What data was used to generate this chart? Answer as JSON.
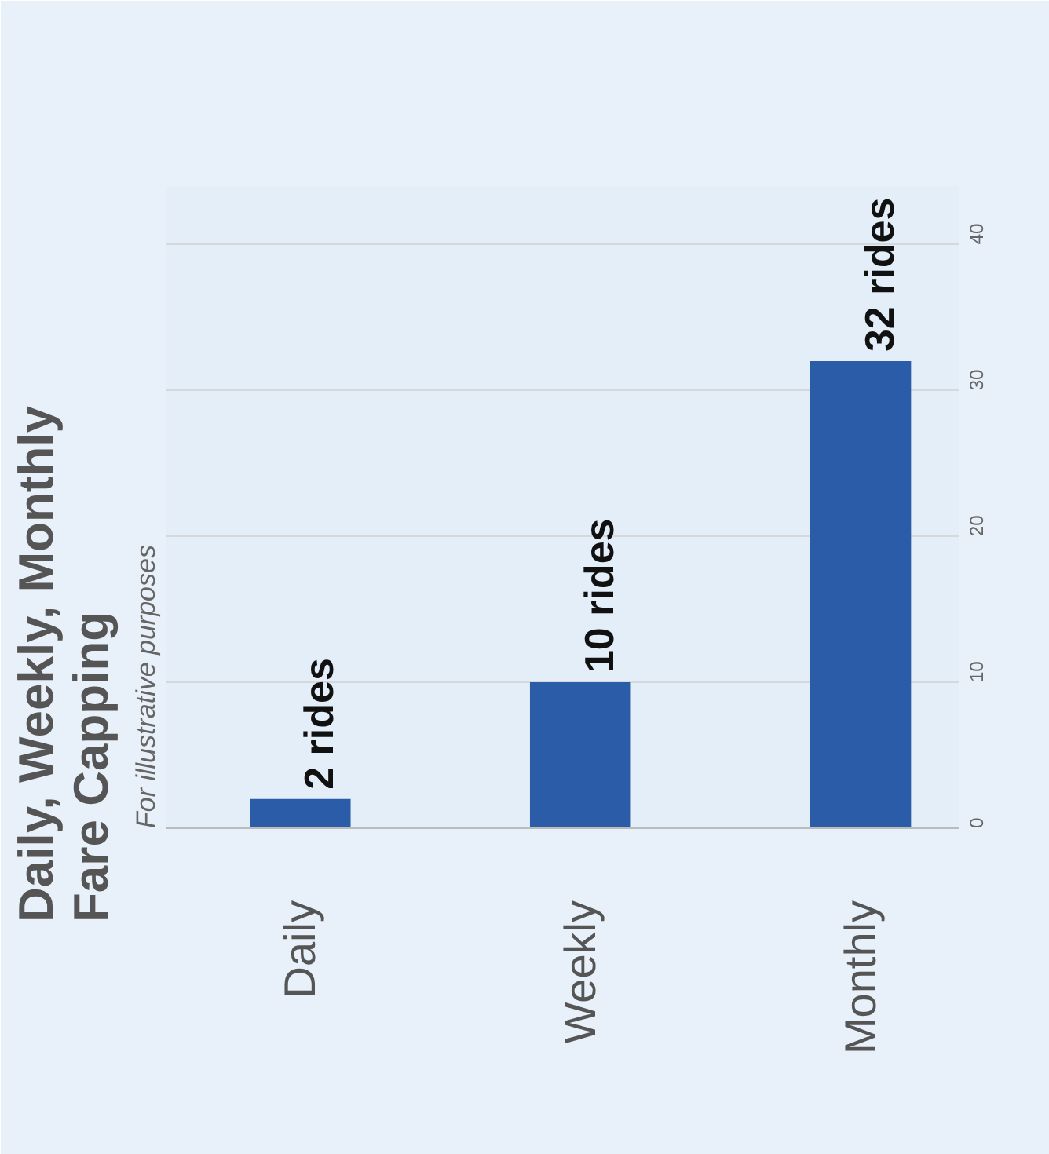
{
  "chart_data": {
    "type": "bar",
    "title": "Daily, Weekly, Monthly\nFare Capping",
    "subtitle": "For illustrative purposes",
    "categories": [
      "Daily",
      "Weekly",
      "Monthly"
    ],
    "values": [
      2,
      10,
      32
    ],
    "color": "#2b5ca8",
    "value_labels": [
      "2 rides",
      "10 rides",
      "32 rides"
    ],
    "ylim": [
      0,
      44
    ],
    "yticks": [
      0,
      10,
      20,
      30,
      40
    ],
    "grid": "y"
  }
}
